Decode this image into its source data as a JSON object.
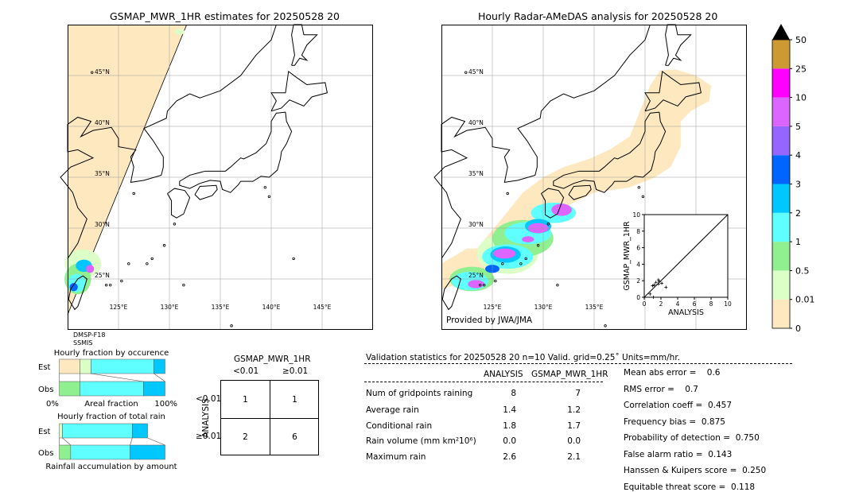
{
  "left_map": {
    "title": "GSMAP_MWR_1HR estimates for 20250528 20",
    "sensor_lines": [
      "DMSP-F18",
      "SSMIS"
    ],
    "lon_ticks": [
      "125°E",
      "130°E",
      "135°E",
      "140°E",
      "145°E"
    ],
    "lat_ticks": [
      "45°N",
      "40°N",
      "35°N",
      "30°N",
      "25°N"
    ]
  },
  "right_map": {
    "title": "Hourly Radar-AMeDAS analysis for 20250528 20",
    "credit": "Provided by JWA/JMA",
    "lon_ticks": [
      "125°E",
      "130°E",
      "135°E"
    ],
    "lat_ticks": [
      "45°N",
      "40°N",
      "35°N",
      "30°N",
      "25°N"
    ]
  },
  "colorbar": {
    "levels": [
      "0",
      "0.01",
      "0.5",
      "1",
      "2",
      "3",
      "4",
      "5",
      "10",
      "25",
      "50"
    ],
    "colors": [
      "#fee8c0",
      "#dcffc8",
      "#90f090",
      "#60ffff",
      "#00c8ff",
      "#0064ff",
      "#9664ff",
      "#dc64ff",
      "#ff00ff",
      "#cc9933"
    ],
    "over_color": "#000000"
  },
  "chart_data": [
    {
      "type": "scatter",
      "xlabel": "ANALYSIS",
      "ylabel": "GSMAP_MWR_1HR",
      "xlim": [
        0,
        10
      ],
      "ylim": [
        0,
        10
      ],
      "ticks": [
        "0",
        "2",
        "4",
        "6",
        "8",
        "10"
      ],
      "diagonal": true,
      "points": [
        [
          0.7,
          0.4
        ],
        [
          1.0,
          1.4
        ],
        [
          1.2,
          1.5
        ],
        [
          1.4,
          1.8
        ],
        [
          1.7,
          1.6
        ],
        [
          1.7,
          2.1
        ],
        [
          1.8,
          1.9
        ],
        [
          2.1,
          1.7
        ],
        [
          2.6,
          1.2
        ],
        [
          1.1,
          0.0
        ]
      ]
    },
    {
      "type": "bar",
      "title": "Hourly fraction by occurence",
      "xlabel": "Areal fraction",
      "x_left": "0%",
      "x_right": "100%",
      "rows": [
        {
          "label": "Est",
          "fractions": [
            0.195,
            0.105,
            0.595,
            0.105
          ],
          "colors": [
            "#fee8c0",
            "#dcffc8",
            "#60ffff",
            "#00c8ff"
          ]
        },
        {
          "label": "Obs",
          "fractions": [
            0.195,
            0.602,
            0.203
          ],
          "colors": [
            "#90f090",
            "#60ffff",
            "#00c8ff"
          ]
        }
      ]
    },
    {
      "type": "bar",
      "title": "Hourly fraction of total rain",
      "xlabel": "Rainfall accumulation by amount",
      "rows": [
        {
          "label": "Est",
          "fractions": [
            0.03,
            0.66,
            0.145
          ],
          "colors": [
            "#dcffc8",
            "#60ffff",
            "#00c8ff"
          ]
        },
        {
          "label": "Obs",
          "fractions": [
            0.108,
            0.562,
            0.33
          ],
          "colors": [
            "#90f090",
            "#60ffff",
            "#00c8ff"
          ]
        }
      ]
    }
  ],
  "contingency": {
    "col_title": "GSMAP_MWR_1HR",
    "row_title": "ANALYSIS",
    "col_labels": [
      "<0.01",
      "≥0.01"
    ],
    "row_labels": [
      "<0.01",
      "≥0.01"
    ],
    "cells": [
      [
        "1",
        "1"
      ],
      [
        "2",
        "6"
      ]
    ]
  },
  "validation": {
    "header": "Validation statistics for 20250528 20  n=10 Valid. grid=0.25˚ Units=mm/hr.",
    "columns": [
      "ANALYSIS",
      "GSMAP_MWR_1HR"
    ],
    "rows": [
      {
        "label": "Num of gridpoints raining",
        "analysis": "8",
        "gsmap": "7"
      },
      {
        "label": "Average rain",
        "analysis": "1.4",
        "gsmap": "1.2"
      },
      {
        "label": "Conditional rain",
        "analysis": "1.8",
        "gsmap": "1.7"
      },
      {
        "label": "Rain volume (mm km²10⁶)",
        "analysis": "0.0",
        "gsmap": "0.0"
      },
      {
        "label": "Maximum rain",
        "analysis": "2.6",
        "gsmap": "2.1"
      }
    ],
    "scores": [
      "Mean abs error =    0.6",
      "RMS error =    0.7",
      "Correlation coeff =  0.457",
      "Frequency bias =  0.875",
      "Probability of detection =  0.750",
      "False alarm ratio =  0.143",
      "Hanssen & Kuipers score =  0.250",
      "Equitable threat score =  0.118"
    ]
  }
}
